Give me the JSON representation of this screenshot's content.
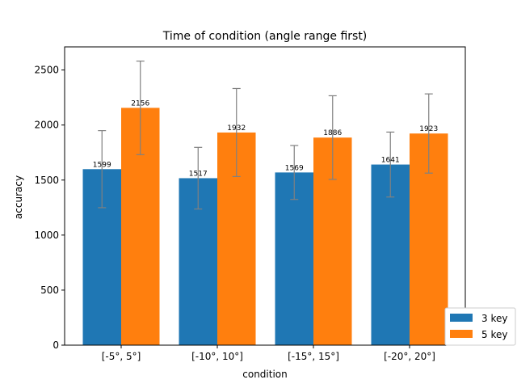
{
  "chart_data": {
    "type": "bar",
    "title": "Time of condition (angle range first)",
    "xlabel": "condition",
    "ylabel": "accuracy",
    "categories": [
      "[-5°, 5°]",
      "[-10°, 10°]",
      "[-15°, 15°]",
      "[-20°, 20°]"
    ],
    "series": [
      {
        "name": "3 key",
        "color": "#1f77b4",
        "values": [
          1599,
          1517,
          1569,
          1641
        ],
        "errors": [
          350,
          280,
          245,
          295
        ]
      },
      {
        "name": "5 key",
        "color": "#ff7f0e",
        "values": [
          2156,
          1932,
          1886,
          1923
        ],
        "errors": [
          425,
          400,
          380,
          360
        ]
      }
    ],
    "data_labels": [
      [
        "1599",
        "1517",
        "1569",
        "1641"
      ],
      [
        "2156",
        "1932",
        "1886",
        "1923"
      ]
    ],
    "ylim": [
      0,
      2710
    ],
    "yticks": [
      0,
      500,
      1000,
      1500,
      2000,
      2500
    ],
    "error_bar_color": "#808080",
    "grid": false,
    "legend_position": "lower-right"
  }
}
